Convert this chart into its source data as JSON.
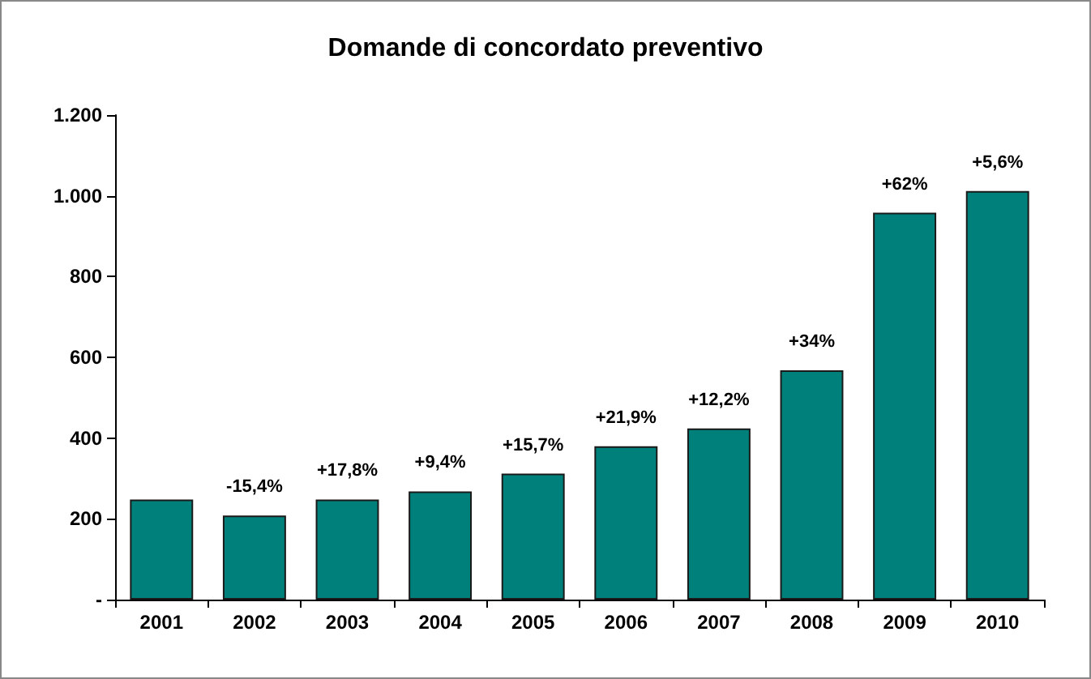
{
  "chart_data": {
    "type": "bar",
    "title": "Domande di concordato preventivo",
    "categories": [
      "2001",
      "2002",
      "2003",
      "2004",
      "2005",
      "2006",
      "2007",
      "2008",
      "2009",
      "2010"
    ],
    "values": [
      248,
      208,
      248,
      268,
      312,
      380,
      424,
      568,
      958,
      1012
    ],
    "annotations": [
      {
        "text": "-15,4%",
        "x": "2002",
        "y": 208
      },
      {
        "text": "+17,8%",
        "x": "2003",
        "y": 248
      },
      {
        "text": "+9,4%",
        "x": "2004",
        "y": 268
      },
      {
        "text": "+15,7%",
        "x": "2005",
        "y": 312
      },
      {
        "text": "+21,9%",
        "x": "2006",
        "y": 380
      },
      {
        "text": "+12,2%",
        "x": "2007",
        "y": 424
      },
      {
        "text": "+34%",
        "x": "2008",
        "y": 568
      },
      {
        "text": "+62%",
        "x": "2009",
        "y": 958
      },
      {
        "text": "+5,6%",
        "x": "2010",
        "y": 1012
      }
    ],
    "color": "#00807a",
    "ylim": [
      0,
      1200
    ],
    "yticks": [
      {
        "value": 0,
        "label": "-"
      },
      200,
      400,
      600,
      800,
      {
        "value": 1000,
        "label": "1.000"
      },
      {
        "value": 1200,
        "label": "1.200"
      }
    ],
    "grid": false
  }
}
